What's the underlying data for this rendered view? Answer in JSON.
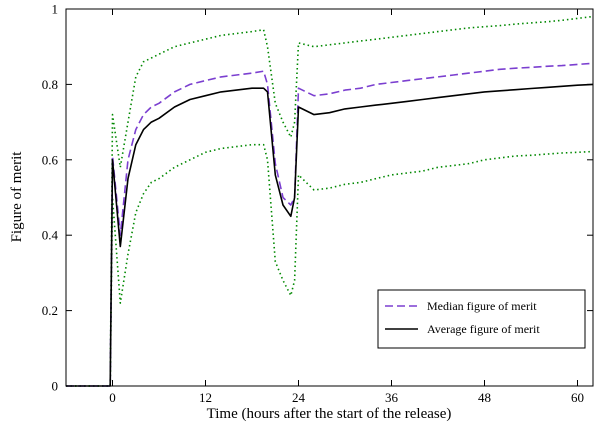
{
  "chart_data": {
    "type": "line",
    "title": "",
    "xlabel": "Time (hours after the start of the release)",
    "ylabel": "Figure of merit",
    "xlim": [
      -6,
      62
    ],
    "ylim": [
      0,
      1
    ],
    "x_ticks": [
      0,
      12,
      24,
      36,
      48,
      60
    ],
    "y_ticks": [
      0,
      0.2,
      0.4,
      0.6,
      0.8,
      1
    ],
    "y_tick_labels": [
      "0",
      "0.2",
      "0.4",
      "0.6",
      "0.8",
      "1"
    ],
    "grid": false,
    "legend_position": "bottom-right",
    "series": [
      {
        "name": "Median figure of merit",
        "style": "dashed",
        "color": "#7b3fd0",
        "x": [
          -6,
          -1,
          -0.3,
          0,
          1,
          2,
          3,
          4,
          5,
          6,
          8,
          10,
          12,
          14,
          16,
          18,
          19.5,
          20,
          21,
          22,
          23,
          23.5,
          24,
          26,
          28,
          30,
          32,
          34,
          36,
          38,
          40,
          42,
          44,
          46,
          48,
          50,
          52,
          54,
          56,
          58,
          60,
          62
        ],
        "y": [
          0,
          0,
          0,
          0.61,
          0.4,
          0.6,
          0.68,
          0.72,
          0.74,
          0.75,
          0.78,
          0.8,
          0.81,
          0.82,
          0.825,
          0.83,
          0.835,
          0.8,
          0.59,
          0.5,
          0.48,
          0.5,
          0.79,
          0.77,
          0.775,
          0.785,
          0.79,
          0.8,
          0.805,
          0.81,
          0.815,
          0.82,
          0.825,
          0.83,
          0.835,
          0.84,
          0.843,
          0.845,
          0.848,
          0.85,
          0.853,
          0.856
        ]
      },
      {
        "name": "Average figure of merit",
        "style": "solid",
        "color": "#000000",
        "x": [
          -6,
          -1,
          -0.3,
          0,
          1,
          2,
          3,
          4,
          5,
          6,
          8,
          10,
          12,
          14,
          16,
          18,
          19.5,
          20,
          21,
          22,
          23,
          23.5,
          24,
          26,
          28,
          30,
          32,
          34,
          36,
          38,
          40,
          42,
          44,
          46,
          48,
          50,
          52,
          54,
          56,
          58,
          60,
          62
        ],
        "y": [
          0,
          0,
          0,
          0.6,
          0.37,
          0.55,
          0.64,
          0.68,
          0.7,
          0.71,
          0.74,
          0.76,
          0.77,
          0.78,
          0.785,
          0.79,
          0.79,
          0.78,
          0.56,
          0.48,
          0.45,
          0.5,
          0.74,
          0.72,
          0.725,
          0.735,
          0.74,
          0.745,
          0.75,
          0.755,
          0.76,
          0.765,
          0.77,
          0.775,
          0.78,
          0.783,
          0.786,
          0.789,
          0.792,
          0.795,
          0.798,
          0.8
        ]
      },
      {
        "style": "dotted",
        "color": "#008800",
        "x": [
          -6,
          -1,
          -0.3,
          0,
          1,
          2,
          3,
          4,
          5,
          6,
          8,
          10,
          12,
          14,
          16,
          18,
          19.5,
          20,
          21,
          22,
          23,
          23.5,
          24,
          26,
          28,
          30,
          32,
          34,
          36,
          38,
          40,
          42,
          44,
          46,
          48,
          50,
          52,
          54,
          56,
          58,
          60,
          62
        ],
        "y": [
          0,
          0,
          0,
          0.72,
          0.58,
          0.7,
          0.82,
          0.86,
          0.87,
          0.88,
          0.9,
          0.91,
          0.92,
          0.93,
          0.935,
          0.94,
          0.945,
          0.9,
          0.75,
          0.7,
          0.66,
          0.7,
          0.91,
          0.9,
          0.905,
          0.91,
          0.915,
          0.92,
          0.925,
          0.93,
          0.935,
          0.94,
          0.945,
          0.95,
          0.953,
          0.956,
          0.96,
          0.963,
          0.966,
          0.97,
          0.975,
          0.98
        ]
      },
      {
        "style": "dotted",
        "color": "#008800",
        "x": [
          -6,
          -1,
          -0.3,
          0,
          1,
          2,
          3,
          4,
          5,
          6,
          8,
          10,
          12,
          14,
          16,
          18,
          19.5,
          20,
          21,
          22,
          23,
          23.5,
          24,
          26,
          28,
          30,
          32,
          34,
          36,
          38,
          40,
          42,
          44,
          46,
          48,
          50,
          52,
          54,
          56,
          58,
          60,
          62
        ],
        "y": [
          0,
          0,
          0,
          0.5,
          0.22,
          0.35,
          0.46,
          0.51,
          0.54,
          0.55,
          0.58,
          0.6,
          0.62,
          0.63,
          0.635,
          0.64,
          0.64,
          0.6,
          0.33,
          0.28,
          0.24,
          0.28,
          0.56,
          0.52,
          0.525,
          0.535,
          0.54,
          0.55,
          0.56,
          0.565,
          0.57,
          0.58,
          0.585,
          0.59,
          0.6,
          0.605,
          0.61,
          0.612,
          0.615,
          0.618,
          0.62,
          0.622
        ]
      }
    ]
  }
}
